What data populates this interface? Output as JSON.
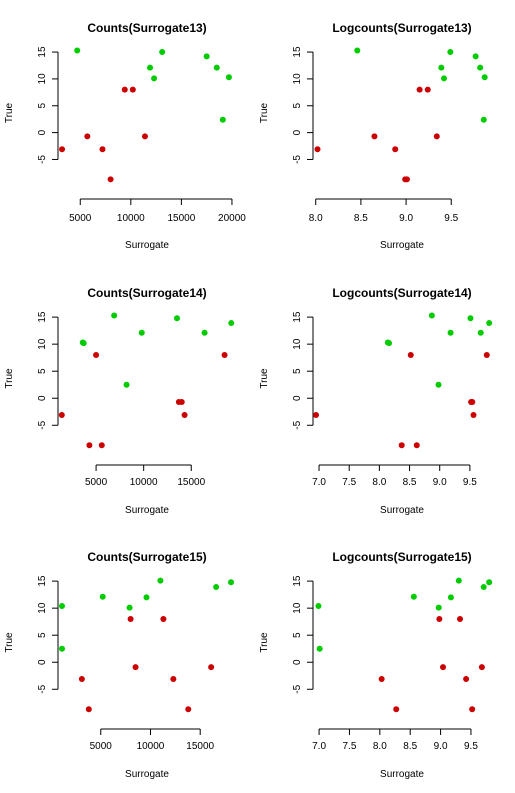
{
  "colors": {
    "red": "#cc0000",
    "green": "#00cc00"
  },
  "chart_data": [
    {
      "type": "scatter",
      "title": "Counts(Surrogate13)",
      "xlabel": "Surrogate",
      "ylabel": "True",
      "xlim": [
        2800,
        20400
      ],
      "ylim": [
        -9.2,
        16.5
      ],
      "xticks": [
        5000,
        10000,
        15000,
        20000
      ],
      "yticks": [
        -5,
        0,
        5,
        10,
        15
      ],
      "series": [
        {
          "color": "green",
          "points": [
            [
              4700,
              15.3
            ],
            [
              11900,
              12.1
            ],
            [
              12300,
              10.1
            ],
            [
              13100,
              15.0
            ],
            [
              17500,
              14.2
            ],
            [
              18500,
              12.1
            ],
            [
              19100,
              2.4
            ],
            [
              19700,
              10.3
            ]
          ]
        },
        {
          "color": "red",
          "points": [
            [
              3200,
              -3.1
            ],
            [
              5700,
              -0.7
            ],
            [
              7200,
              -3.1
            ],
            [
              8000,
              -8.7
            ],
            [
              9400,
              8.0
            ],
            [
              10200,
              8.0
            ],
            [
              11400,
              -0.7
            ]
          ]
        }
      ]
    },
    {
      "type": "scatter",
      "title": "Logcounts(Surrogate13)",
      "xlabel": "Surrogate",
      "ylabel": "True",
      "xlim": [
        7.97,
        9.94
      ],
      "ylim": [
        -9.2,
        16.5
      ],
      "xticks": [
        8.0,
        8.5,
        9.0,
        9.5
      ],
      "yticks": [
        -5,
        0,
        5,
        10,
        15
      ],
      "series": [
        {
          "color": "green",
          "points": [
            [
              8.46,
              15.3
            ],
            [
              9.39,
              12.1
            ],
            [
              9.42,
              10.1
            ],
            [
              9.49,
              15.0
            ],
            [
              9.77,
              14.2
            ],
            [
              9.82,
              12.1
            ],
            [
              9.86,
              2.4
            ],
            [
              9.87,
              10.3
            ]
          ]
        },
        {
          "color": "red",
          "points": [
            [
              8.02,
              -3.1
            ],
            [
              8.65,
              -0.7
            ],
            [
              8.88,
              -3.1
            ],
            [
              8.99,
              -8.7
            ],
            [
              9.01,
              -8.7
            ],
            [
              9.15,
              8.0
            ],
            [
              9.24,
              8.0
            ],
            [
              9.34,
              -0.7
            ]
          ]
        }
      ]
    },
    {
      "type": "scatter",
      "title": "Counts(Surrogate14)",
      "xlabel": "Surrogate",
      "ylabel": "True",
      "xlim": [
        1000,
        19700
      ],
      "ylim": [
        -9.2,
        16.5
      ],
      "xticks": [
        5000,
        10000,
        15000
      ],
      "yticks": [
        -5,
        0,
        5,
        10,
        15
      ],
      "series": [
        {
          "color": "green",
          "points": [
            [
              3600,
              10.3
            ],
            [
              3700,
              10.2
            ],
            [
              6900,
              15.3
            ],
            [
              8200,
              2.5
            ],
            [
              9800,
              12.1
            ],
            [
              13500,
              14.8
            ],
            [
              16400,
              12.1
            ],
            [
              19200,
              13.9
            ]
          ]
        },
        {
          "color": "red",
          "points": [
            [
              1400,
              -3.1
            ],
            [
              4300,
              -8.7
            ],
            [
              5000,
              8.0
            ],
            [
              5600,
              -8.7
            ],
            [
              13700,
              -0.7
            ],
            [
              14000,
              -0.7
            ],
            [
              14300,
              -3.1
            ],
            [
              18500,
              8.0
            ]
          ]
        }
      ]
    },
    {
      "type": "scatter",
      "title": "Logcounts(Surrogate14)",
      "xlabel": "Surrogate",
      "ylabel": "True",
      "xlim": [
        6.9,
        9.85
      ],
      "ylim": [
        -9.2,
        16.5
      ],
      "xticks": [
        7.0,
        7.5,
        8.0,
        8.5,
        9.0,
        9.5
      ],
      "yticks": [
        -5,
        0,
        5,
        10,
        15
      ],
      "series": [
        {
          "color": "green",
          "points": [
            [
              8.14,
              10.3
            ],
            [
              8.16,
              10.2
            ],
            [
              8.87,
              15.3
            ],
            [
              8.98,
              2.5
            ],
            [
              9.18,
              12.1
            ],
            [
              9.51,
              14.8
            ],
            [
              9.68,
              12.1
            ],
            [
              9.82,
              13.9
            ]
          ]
        },
        {
          "color": "red",
          "points": [
            [
              6.95,
              -3.1
            ],
            [
              8.37,
              -8.7
            ],
            [
              8.52,
              8.0
            ],
            [
              8.62,
              -8.7
            ],
            [
              9.52,
              -0.7
            ],
            [
              9.54,
              -0.7
            ],
            [
              9.56,
              -3.1
            ],
            [
              9.78,
              8.0
            ]
          ]
        }
      ]
    },
    {
      "type": "scatter",
      "title": "Counts(Surrogate15)",
      "xlabel": "Surrogate",
      "ylabel": "True",
      "xlim": [
        700,
        18600
      ],
      "ylim": [
        -9.2,
        16.5
      ],
      "xticks": [
        5000,
        10000,
        15000
      ],
      "yticks": [
        -5,
        0,
        5,
        10,
        15
      ],
      "series": [
        {
          "color": "green",
          "points": [
            [
              1100,
              10.4
            ],
            [
              1100,
              2.5
            ],
            [
              5200,
              12.1
            ],
            [
              7900,
              10.1
            ],
            [
              9600,
              12.0
            ],
            [
              11000,
              15.1
            ],
            [
              16600,
              13.9
            ],
            [
              18100,
              14.8
            ]
          ]
        },
        {
          "color": "red",
          "points": [
            [
              3100,
              -3.1
            ],
            [
              3800,
              -8.7
            ],
            [
              8000,
              8.0
            ],
            [
              8500,
              -0.9
            ],
            [
              11300,
              8.0
            ],
            [
              12300,
              -3.1
            ],
            [
              13800,
              -8.7
            ],
            [
              16100,
              -0.9
            ]
          ]
        }
      ]
    },
    {
      "type": "scatter",
      "title": "Logcounts(Surrogate15)",
      "xlabel": "Surrogate",
      "ylabel": "True",
      "xlim": [
        6.9,
        9.83
      ],
      "ylim": [
        -9.2,
        16.5
      ],
      "xticks": [
        7.0,
        7.5,
        8.0,
        8.5,
        9.0,
        9.5
      ],
      "yticks": [
        -5,
        0,
        5,
        10,
        15
      ],
      "series": [
        {
          "color": "green",
          "points": [
            [
              6.99,
              10.4
            ],
            [
              7.01,
              2.5
            ],
            [
              8.56,
              12.1
            ],
            [
              8.97,
              10.1
            ],
            [
              9.17,
              12.0
            ],
            [
              9.3,
              15.1
            ],
            [
              9.71,
              13.9
            ],
            [
              9.8,
              14.8
            ]
          ]
        },
        {
          "color": "red",
          "points": [
            [
              8.03,
              -3.1
            ],
            [
              8.27,
              -8.7
            ],
            [
              8.98,
              8.0
            ],
            [
              9.04,
              -0.9
            ],
            [
              9.32,
              8.0
            ],
            [
              9.42,
              -3.1
            ],
            [
              9.52,
              -8.7
            ],
            [
              9.68,
              -0.9
            ]
          ]
        }
      ]
    }
  ]
}
